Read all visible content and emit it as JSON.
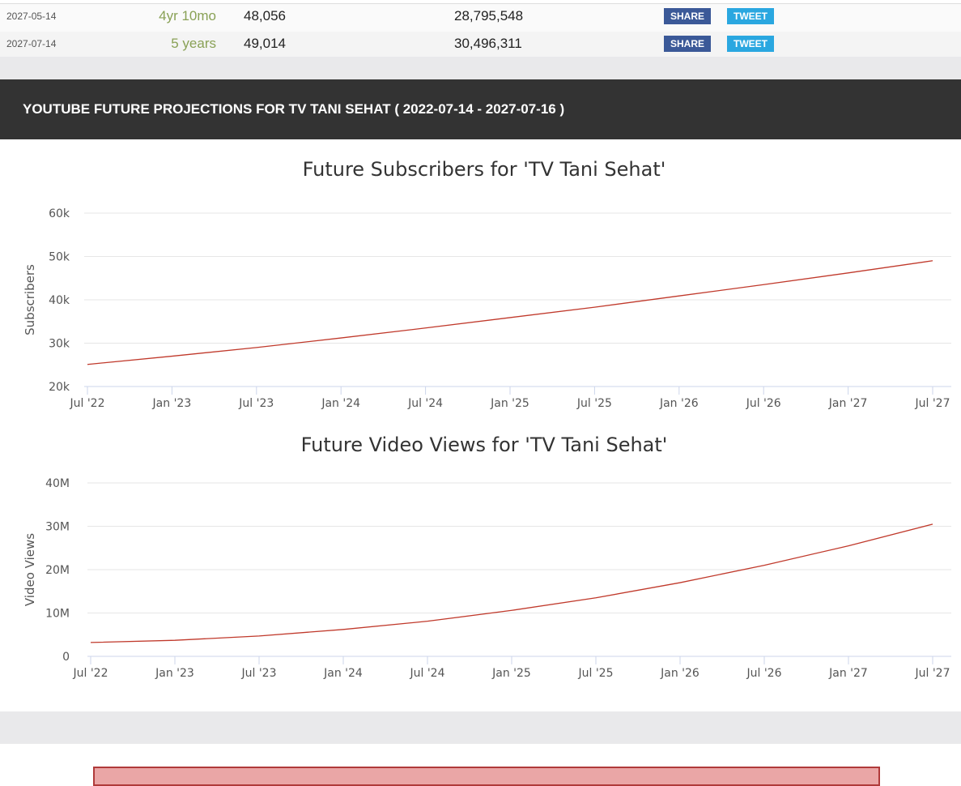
{
  "table": {
    "rows": [
      {
        "date": "2027-05-14",
        "age": "4yr 10mo",
        "subscribers": "48,056",
        "views": "28,795,548",
        "share": "SHARE",
        "tweet": "TWEET"
      },
      {
        "date": "2027-07-14",
        "age": "5 years",
        "subscribers": "49,014",
        "views": "30,496,311",
        "share": "SHARE",
        "tweet": "TWEET"
      }
    ]
  },
  "section_title": "YOUTUBE FUTURE PROJECTIONS FOR TV TANI SEHAT ( 2022-07-14 - 2027-07-16 )",
  "chart_data": [
    {
      "type": "line",
      "title": "Future Subscribers for 'TV Tani Sehat'",
      "y_label": "Subscribers",
      "x": [
        "2022-07",
        "2023-01",
        "2023-07",
        "2024-01",
        "2024-07",
        "2025-01",
        "2025-07",
        "2026-01",
        "2026-07",
        "2027-01",
        "2027-07"
      ],
      "series": [
        {
          "name": "Subscribers",
          "color": "#c0392b",
          "values": [
            25100,
            27000,
            29000,
            31200,
            33500,
            35900,
            38300,
            40900,
            43500,
            46200,
            49014
          ]
        }
      ],
      "xlim": [
        "2022-07",
        "2027-07"
      ],
      "xticks": [
        {
          "value": "2022-07",
          "label": "Jul '22"
        },
        {
          "value": "2023-01",
          "label": "Jan '23"
        },
        {
          "value": "2023-07",
          "label": "Jul '23"
        },
        {
          "value": "2024-01",
          "label": "Jan '24"
        },
        {
          "value": "2024-07",
          "label": "Jul '24"
        },
        {
          "value": "2025-01",
          "label": "Jan '25"
        },
        {
          "value": "2025-07",
          "label": "Jul '25"
        },
        {
          "value": "2026-01",
          "label": "Jan '26"
        },
        {
          "value": "2026-07",
          "label": "Jul '26"
        },
        {
          "value": "2027-01",
          "label": "Jan '27"
        },
        {
          "value": "2027-07",
          "label": "Jul '27"
        }
      ],
      "ylim": [
        20000,
        60000
      ],
      "yticks": [
        {
          "value": 20000,
          "label": "20k"
        },
        {
          "value": 30000,
          "label": "30k"
        },
        {
          "value": 40000,
          "label": "40k"
        },
        {
          "value": 50000,
          "label": "50k"
        },
        {
          "value": 60000,
          "label": "60k"
        }
      ],
      "grid": true
    },
    {
      "type": "line",
      "title": "Future Video Views for 'TV Tani Sehat'",
      "y_label": "Video Views",
      "x": [
        "2022-07",
        "2023-01",
        "2023-07",
        "2024-01",
        "2024-07",
        "2025-01",
        "2025-07",
        "2026-01",
        "2026-07",
        "2027-01",
        "2027-07"
      ],
      "series": [
        {
          "name": "Video Views",
          "color": "#c0392b",
          "values": [
            3200000,
            3700000,
            4700000,
            6200000,
            8100000,
            10600000,
            13500000,
            17000000,
            21000000,
            25500000,
            30496311
          ]
        }
      ],
      "xlim": [
        "2022-07",
        "2027-07"
      ],
      "xticks": [
        {
          "value": "2022-07",
          "label": "Jul '22"
        },
        {
          "value": "2023-01",
          "label": "Jan '23"
        },
        {
          "value": "2023-07",
          "label": "Jul '23"
        },
        {
          "value": "2024-01",
          "label": "Jan '24"
        },
        {
          "value": "2024-07",
          "label": "Jul '24"
        },
        {
          "value": "2025-01",
          "label": "Jan '25"
        },
        {
          "value": "2025-07",
          "label": "Jul '25"
        },
        {
          "value": "2026-01",
          "label": "Jan '26"
        },
        {
          "value": "2026-07",
          "label": "Jul '26"
        },
        {
          "value": "2027-01",
          "label": "Jan '27"
        },
        {
          "value": "2027-07",
          "label": "Jul '27"
        }
      ],
      "ylim": [
        0,
        40000000
      ],
      "yticks": [
        0,
        {
          "value": 10000000,
          "label": "10M"
        },
        {
          "value": 20000000,
          "label": "20M"
        },
        {
          "value": 30000000,
          "label": "30M"
        },
        {
          "value": 40000000,
          "label": "40M"
        }
      ],
      "grid": true
    }
  ]
}
